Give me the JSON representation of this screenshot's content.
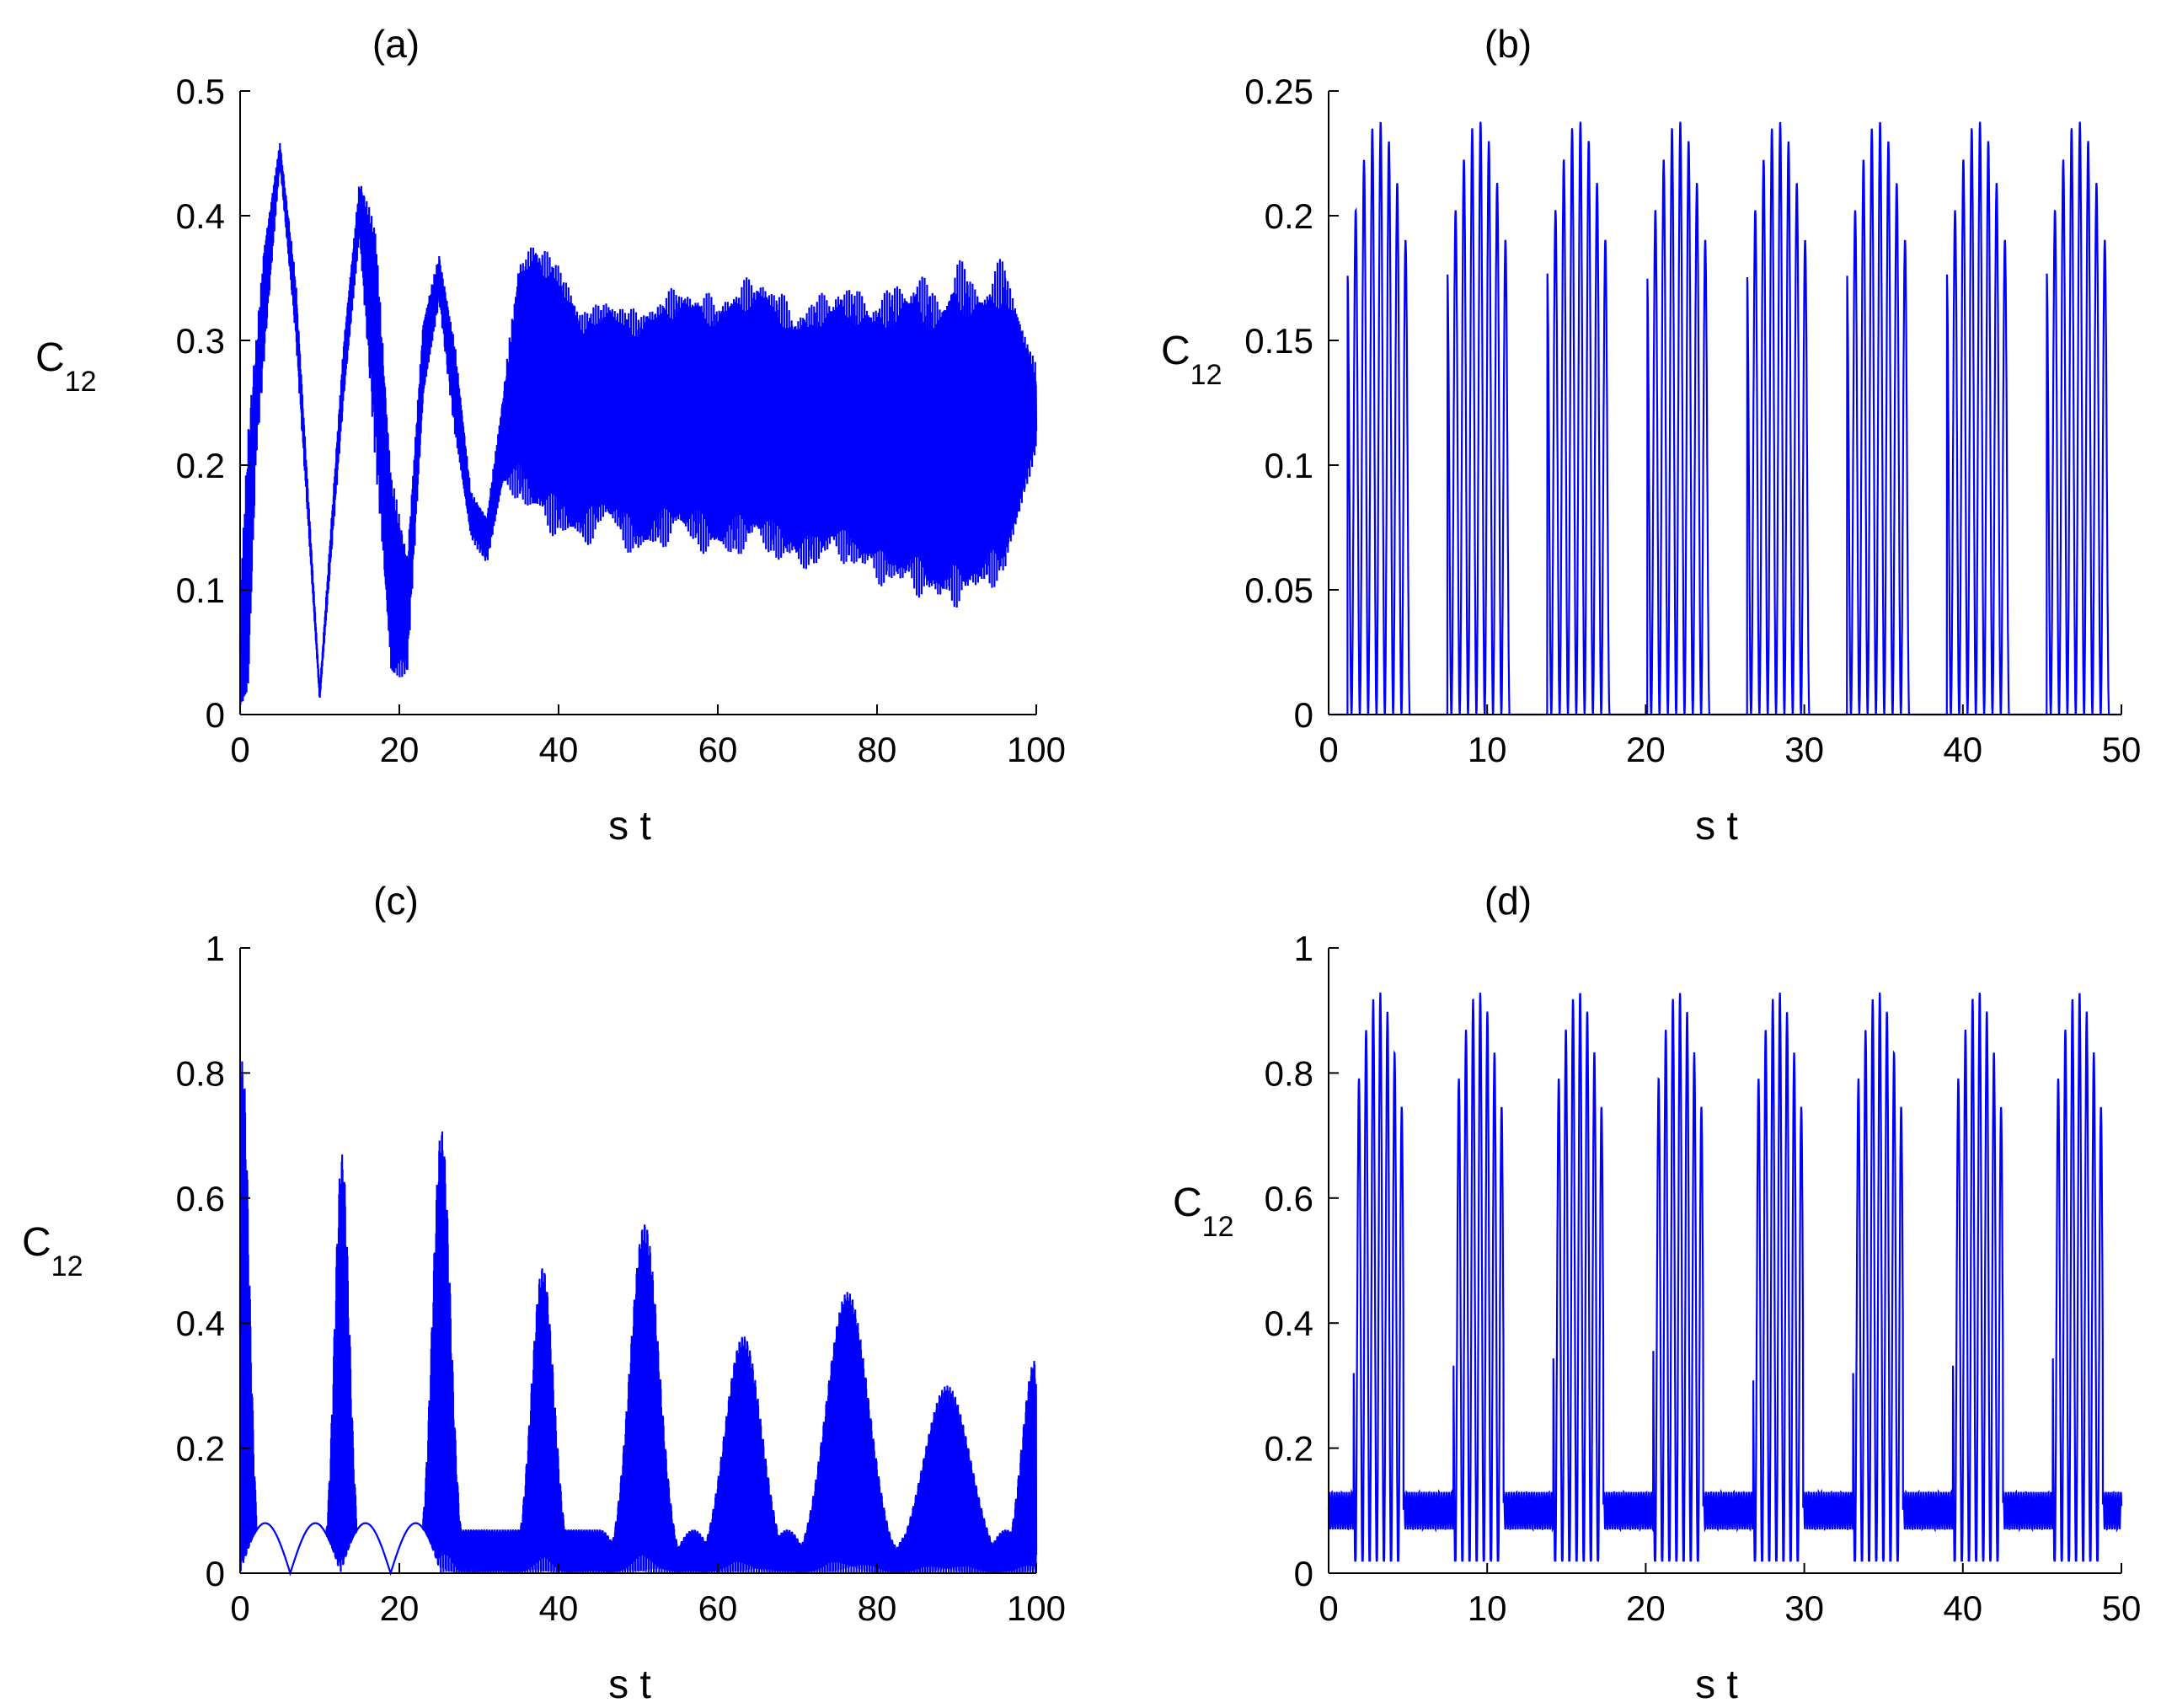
{
  "chart_data": [
    {
      "type": "line",
      "title": "(a)",
      "xlabel": "s t",
      "ylabel": "C",
      "ylabel_sub": "12",
      "xlim": [
        0,
        100
      ],
      "ylim": [
        0,
        0.5
      ],
      "xticks": [
        "0",
        "20",
        "40",
        "60",
        "80",
        "100"
      ],
      "yticks": [
        "0",
        "0.1",
        "0.2",
        "0.3",
        "0.4",
        "0.5"
      ],
      "grid": false,
      "color": "#0000ff",
      "envelope": {
        "x": [
          0,
          1,
          2,
          3,
          5,
          7,
          10,
          13,
          15,
          17,
          19,
          21,
          23,
          25,
          27,
          29,
          31,
          33,
          35,
          37,
          40,
          43,
          46,
          50,
          55,
          60,
          65,
          70,
          75,
          80,
          85,
          88,
          90,
          93,
          96,
          100
        ],
        "y_upper": [
          0.1,
          0.24,
          0.3,
          0.38,
          0.46,
          0.35,
          0.02,
          0.3,
          0.43,
          0.4,
          0.2,
          0.13,
          0.32,
          0.37,
          0.3,
          0.18,
          0.16,
          0.26,
          0.37,
          0.39,
          0.37,
          0.33,
          0.34,
          0.33,
          0.35,
          0.34,
          0.36,
          0.33,
          0.35,
          0.34,
          0.36,
          0.34,
          0.37,
          0.35,
          0.37,
          0.28
        ],
        "y_lower": [
          0.0,
          0.0,
          0.2,
          0.28,
          0.44,
          0.3,
          0.01,
          0.25,
          0.38,
          0.2,
          0.02,
          0.03,
          0.25,
          0.33,
          0.22,
          0.14,
          0.12,
          0.18,
          0.17,
          0.15,
          0.14,
          0.13,
          0.15,
          0.12,
          0.14,
          0.12,
          0.13,
          0.11,
          0.12,
          0.1,
          0.09,
          0.08,
          0.08,
          0.09,
          0.1,
          0.21
        ]
      }
    },
    {
      "type": "line",
      "title": "(b)",
      "xlabel": "s t",
      "ylabel": "C",
      "ylabel_sub": "12",
      "xlim": [
        0,
        50
      ],
      "ylim": [
        0,
        0.25
      ],
      "xticks": [
        "0",
        "10",
        "20",
        "30",
        "40",
        "50"
      ],
      "yticks": [
        "0",
        "0.05",
        "0.1",
        "0.15",
        "0.2",
        "0.25"
      ],
      "grid": false,
      "color": "#0000ff",
      "signal": {
        "peak": 0.238,
        "period": 6.3,
        "active_fraction": 0.62,
        "inner_oscillations": 12
      }
    },
    {
      "type": "line",
      "title": "(c)",
      "xlabel": "s t",
      "ylabel": "C",
      "ylabel_sub": "12",
      "xlim": [
        0,
        100
      ],
      "ylim": [
        0,
        1
      ],
      "xticks": [
        "0",
        "20",
        "40",
        "60",
        "80",
        "100"
      ],
      "yticks": [
        "0",
        "0.2",
        "0.4",
        "0.6",
        "0.8",
        "1"
      ],
      "grid": false,
      "color": "#0000ff",
      "peaks": [
        {
          "x": 0.3,
          "y": 0.82,
          "width": 1.2
        },
        {
          "x": 12.8,
          "y": 0.67,
          "width": 1.3
        },
        {
          "x": 25.3,
          "y": 0.71,
          "width": 1.6
        },
        {
          "x": 38.0,
          "y": 0.49,
          "width": 2.0
        },
        {
          "x": 50.8,
          "y": 0.56,
          "width": 2.6
        },
        {
          "x": 63.2,
          "y": 0.38,
          "width": 3.3
        },
        {
          "x": 76.3,
          "y": 0.45,
          "width": 3.8
        },
        {
          "x": 88.8,
          "y": 0.3,
          "width": 4.2
        },
        {
          "x": 99.8,
          "y": 0.34,
          "width": 2.3
        }
      ],
      "baseline_humps": {
        "y": 0.08,
        "centers": [
          6.3,
          18.8
        ],
        "period": 6.3
      }
    },
    {
      "type": "line",
      "title": "(d)",
      "xlabel": "s t",
      "ylabel": "C",
      "ylabel_sub": "12",
      "xlim": [
        0,
        50
      ],
      "ylim": [
        0,
        1
      ],
      "xticks": [
        "0",
        "10",
        "20",
        "30",
        "40",
        "50"
      ],
      "yticks": [
        "0",
        "0.2",
        "0.4",
        "0.6",
        "0.8",
        "1"
      ],
      "grid": false,
      "color": "#0000ff",
      "signal": {
        "peak": 0.93,
        "baseline": 0.1,
        "period": 6.3,
        "active_fraction": 0.5,
        "inner_oscillations": 14
      }
    }
  ]
}
